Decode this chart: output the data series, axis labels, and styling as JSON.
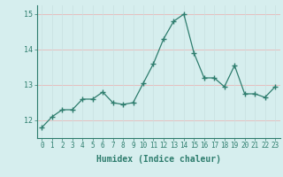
{
  "x": [
    0,
    1,
    2,
    3,
    4,
    5,
    6,
    7,
    8,
    9,
    10,
    11,
    12,
    13,
    14,
    15,
    16,
    17,
    18,
    19,
    20,
    21,
    22,
    23
  ],
  "y": [
    11.8,
    12.1,
    12.3,
    12.3,
    12.6,
    12.6,
    12.8,
    12.5,
    12.45,
    12.5,
    13.05,
    13.6,
    14.3,
    14.8,
    15.0,
    13.9,
    13.2,
    13.2,
    12.95,
    13.55,
    12.75,
    12.75,
    12.65,
    12.95
  ],
  "xlabel": "Humidex (Indice chaleur)",
  "ylim": [
    11.5,
    15.25
  ],
  "xlim": [
    -0.5,
    23.5
  ],
  "yticks": [
    12,
    13,
    14,
    15
  ],
  "xticks": [
    0,
    1,
    2,
    3,
    4,
    5,
    6,
    7,
    8,
    9,
    10,
    11,
    12,
    13,
    14,
    15,
    16,
    17,
    18,
    19,
    20,
    21,
    22,
    23
  ],
  "line_color": "#2e7d6e",
  "bg_color": "#d6eeee",
  "grid_color_h": "#e8b8b8",
  "grid_color_v": "#c8e0e0",
  "marker": "+",
  "marker_size": 4,
  "marker_edge_width": 1.0,
  "line_width": 0.9,
  "tick_fontsize": 5.5,
  "xlabel_fontsize": 7.0
}
